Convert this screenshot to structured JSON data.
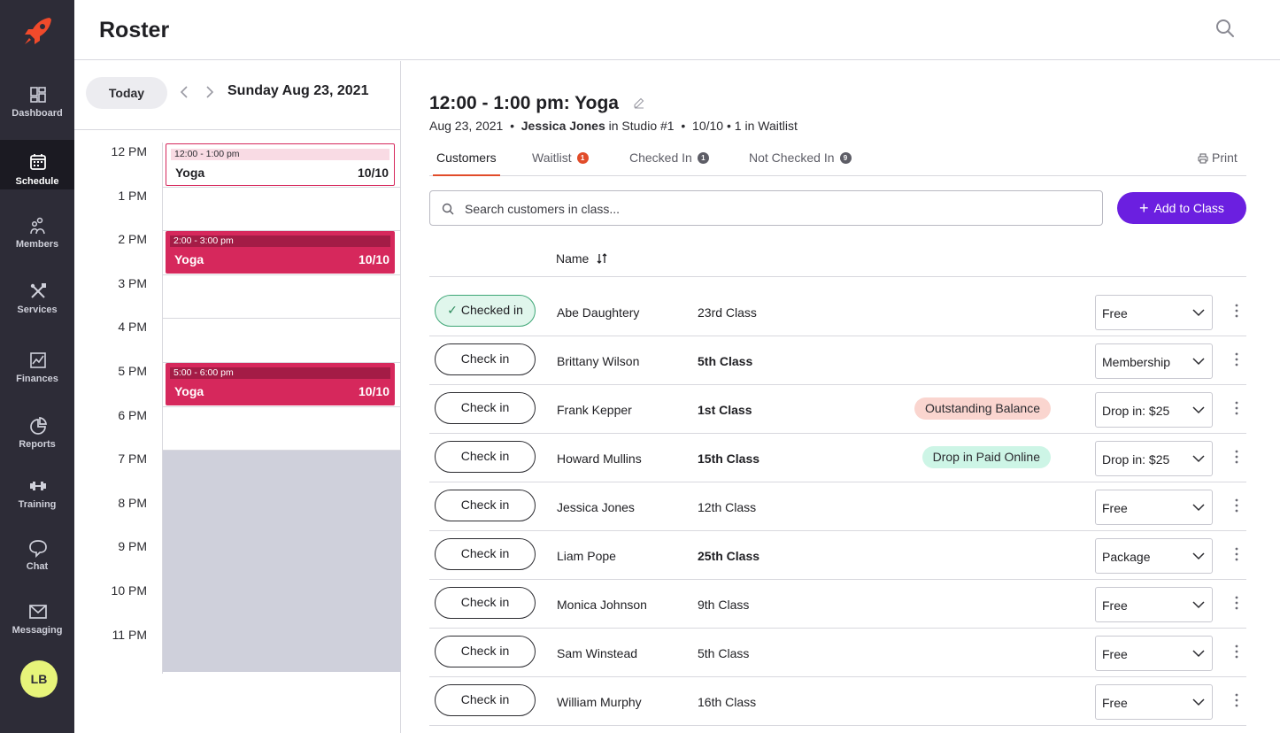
{
  "sidebar": {
    "items": [
      {
        "label": "Dashboard",
        "icon": "dashboard-icon"
      },
      {
        "label": "Schedule",
        "icon": "calendar-icon"
      },
      {
        "label": "Members",
        "icon": "members-icon"
      },
      {
        "label": "Services",
        "icon": "tools-icon"
      },
      {
        "label": "Finances",
        "icon": "chart-line-icon"
      },
      {
        "label": "Reports",
        "icon": "pie-chart-icon"
      },
      {
        "label": "Training",
        "icon": "dumbbell-icon"
      },
      {
        "label": "Chat",
        "icon": "chat-bubble-icon"
      },
      {
        "label": "Messaging",
        "icon": "envelope-icon"
      }
    ],
    "active": "Schedule",
    "avatar_initials": "LB"
  },
  "header": {
    "title": "Roster"
  },
  "calendar": {
    "today_label": "Today",
    "date_label": "Sunday Aug 23, 2021",
    "hours": [
      "12 PM",
      "1 PM",
      "2 PM",
      "3 PM",
      "4 PM",
      "5 PM",
      "6 PM",
      "7 PM",
      "8 PM",
      "9 PM",
      "10 PM",
      "11 PM"
    ],
    "events": [
      {
        "time": "12:00 - 1:00 pm",
        "name": "Yoga",
        "capacity": "10/10",
        "selected": true
      },
      {
        "time": "2:00 - 3:00 pm",
        "name": "Yoga",
        "capacity": "10/10",
        "selected": false
      },
      {
        "time": "5:00 - 6:00 pm",
        "name": "Yoga",
        "capacity": "10/10",
        "selected": false
      }
    ]
  },
  "class_detail": {
    "title": "12:00 - 1:00 pm: Yoga",
    "date": "Aug 23, 2021",
    "instructor": "Jessica Jones",
    "location": "in Studio #1",
    "capacity": "10/10",
    "waitlist_info": "1 in Waitlist"
  },
  "tabs": [
    {
      "label": "Customers",
      "count": ""
    },
    {
      "label": "Waitlist",
      "count": "1"
    },
    {
      "label": "Checked In",
      "count": "1"
    },
    {
      "label": "Not Checked In",
      "count": "9"
    }
  ],
  "print_label": "Print",
  "search": {
    "placeholder": "Search customers in class..."
  },
  "add_button": "Add to Class",
  "table": {
    "name_header": "Name",
    "rows": [
      {
        "action": "Checked in",
        "checked": true,
        "name": "Abe Daughtery",
        "class_count": "23rd Class",
        "bold": false,
        "badge": "",
        "badge_type": "",
        "pass": "Free"
      },
      {
        "action": "Check in",
        "checked": false,
        "name": "Brittany Wilson",
        "class_count": "5th Class",
        "bold": true,
        "badge": "",
        "badge_type": "",
        "pass": "Membership"
      },
      {
        "action": "Check in",
        "checked": false,
        "name": "Frank Kepper",
        "class_count": "1st Class",
        "bold": true,
        "badge": "Outstanding Balance",
        "badge_type": "warn",
        "pass": "Drop in: $25"
      },
      {
        "action": "Check in",
        "checked": false,
        "name": "Howard Mullins",
        "class_count": "15th Class",
        "bold": true,
        "badge": "Drop in Paid Online",
        "badge_type": "ok",
        "pass": "Drop in: $25"
      },
      {
        "action": "Check in",
        "checked": false,
        "name": "Jessica Jones",
        "class_count": "12th Class",
        "bold": false,
        "badge": "",
        "badge_type": "",
        "pass": "Free"
      },
      {
        "action": "Check in",
        "checked": false,
        "name": "Liam Pope",
        "class_count": "25th Class",
        "bold": true,
        "badge": "",
        "badge_type": "",
        "pass": "Package"
      },
      {
        "action": "Check in",
        "checked": false,
        "name": "Monica Johnson",
        "class_count": "9th Class",
        "bold": false,
        "badge": "",
        "badge_type": "",
        "pass": "Free"
      },
      {
        "action": "Check in",
        "checked": false,
        "name": "Sam Winstead",
        "class_count": "5th Class",
        "bold": false,
        "badge": "",
        "badge_type": "",
        "pass": "Free"
      },
      {
        "action": "Check in",
        "checked": false,
        "name": "William Murphy",
        "class_count": "16th Class",
        "bold": false,
        "badge": "",
        "badge_type": "",
        "pass": "Free"
      }
    ]
  },
  "colors": {
    "sidebar_bg": "#2d2c37",
    "accent_logo": "#f04a2b",
    "event_color": "#d6285c",
    "primary_button": "#6b1fe0",
    "tab_underline": "#e14c2a",
    "waitlist_badge": "#e14c2a",
    "count_badge": "#5d5d66"
  }
}
